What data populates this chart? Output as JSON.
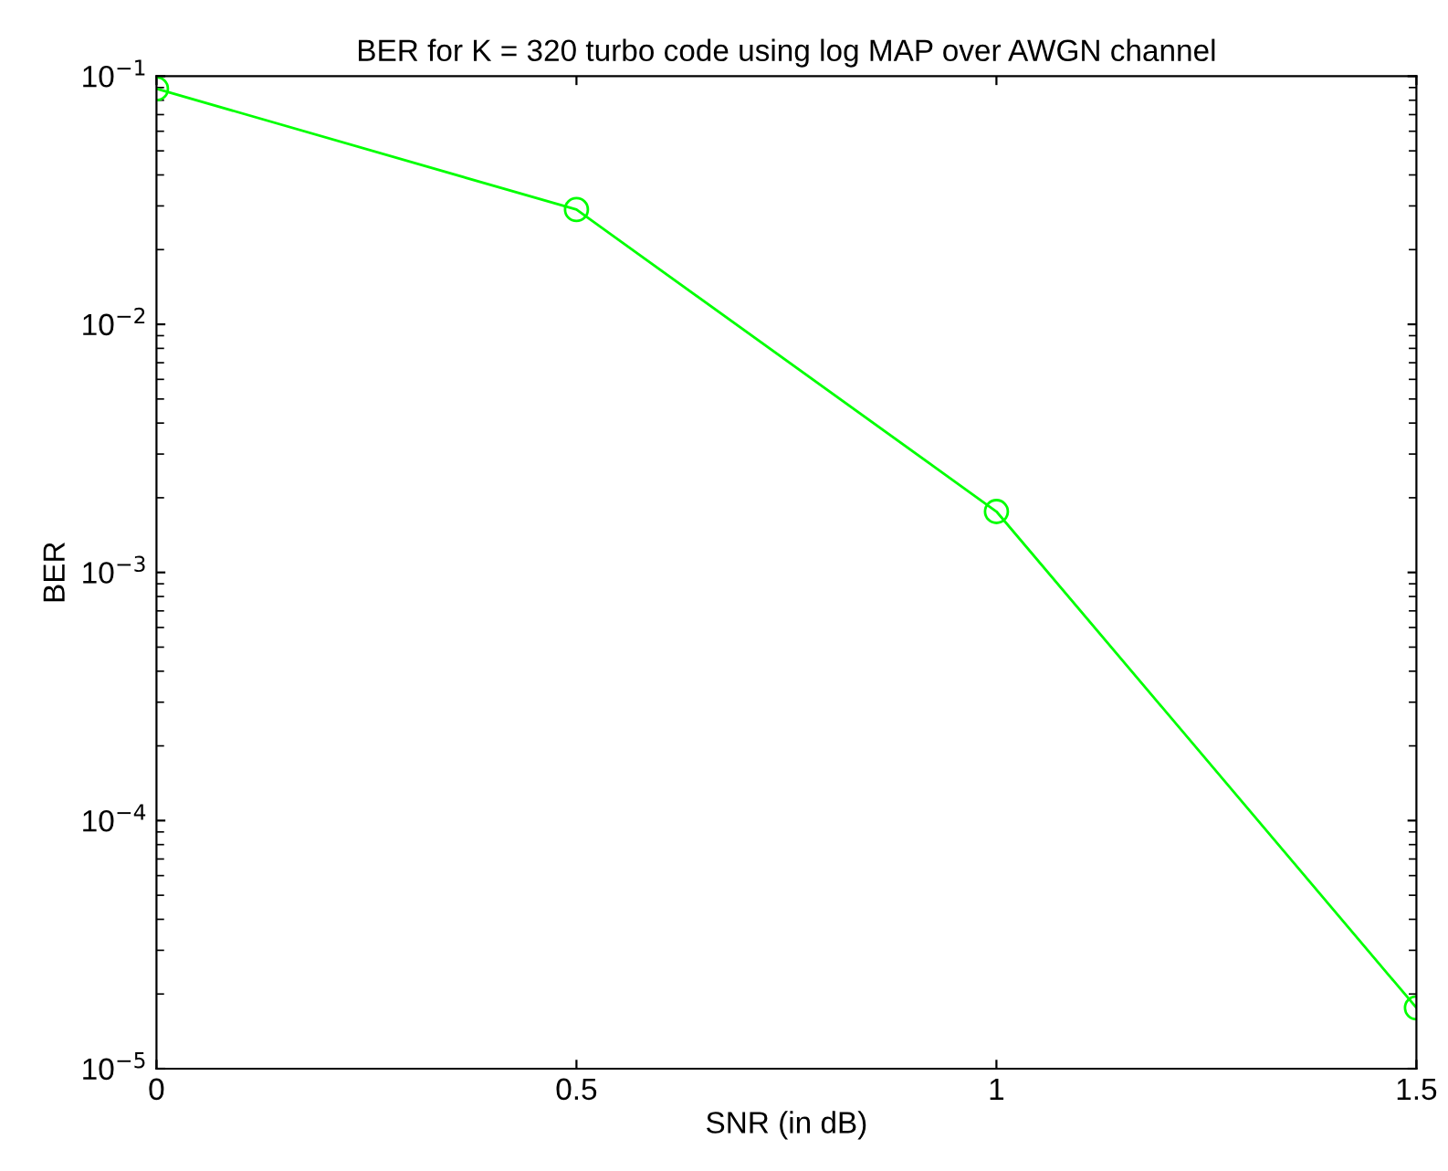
{
  "chart_data": {
    "type": "line",
    "title": "BER for K = 320 turbo code using log MAP over AWGN channel",
    "xlabel": "SNR (in dB)",
    "ylabel": "BER",
    "log": "y",
    "grid": false,
    "legend": false,
    "marker": "circle",
    "line_style": "solid",
    "x": [
      0,
      0.5,
      1,
      1.5
    ],
    "series": [
      {
        "color": "#00ff00",
        "values": [
          0.089,
          0.029,
          0.00176,
          1.76e-05
        ]
      }
    ],
    "xlim": [
      0,
      1.5
    ],
    "xticks": [
      0,
      0.5,
      1,
      1.5
    ],
    "ylim": [
      1e-05,
      0.1
    ],
    "yticks": [
      {
        "value": 1e-05,
        "label": "10$^{−5}$"
      },
      {
        "value": 0.0001,
        "label": "10$^{−4}$"
      },
      {
        "value": 0.001,
        "label": "10$^{−3}$"
      },
      {
        "value": 0.01,
        "label": "10$^{−2}$"
      },
      {
        "value": 0.1,
        "label": "10$^{−1}$"
      }
    ]
  }
}
